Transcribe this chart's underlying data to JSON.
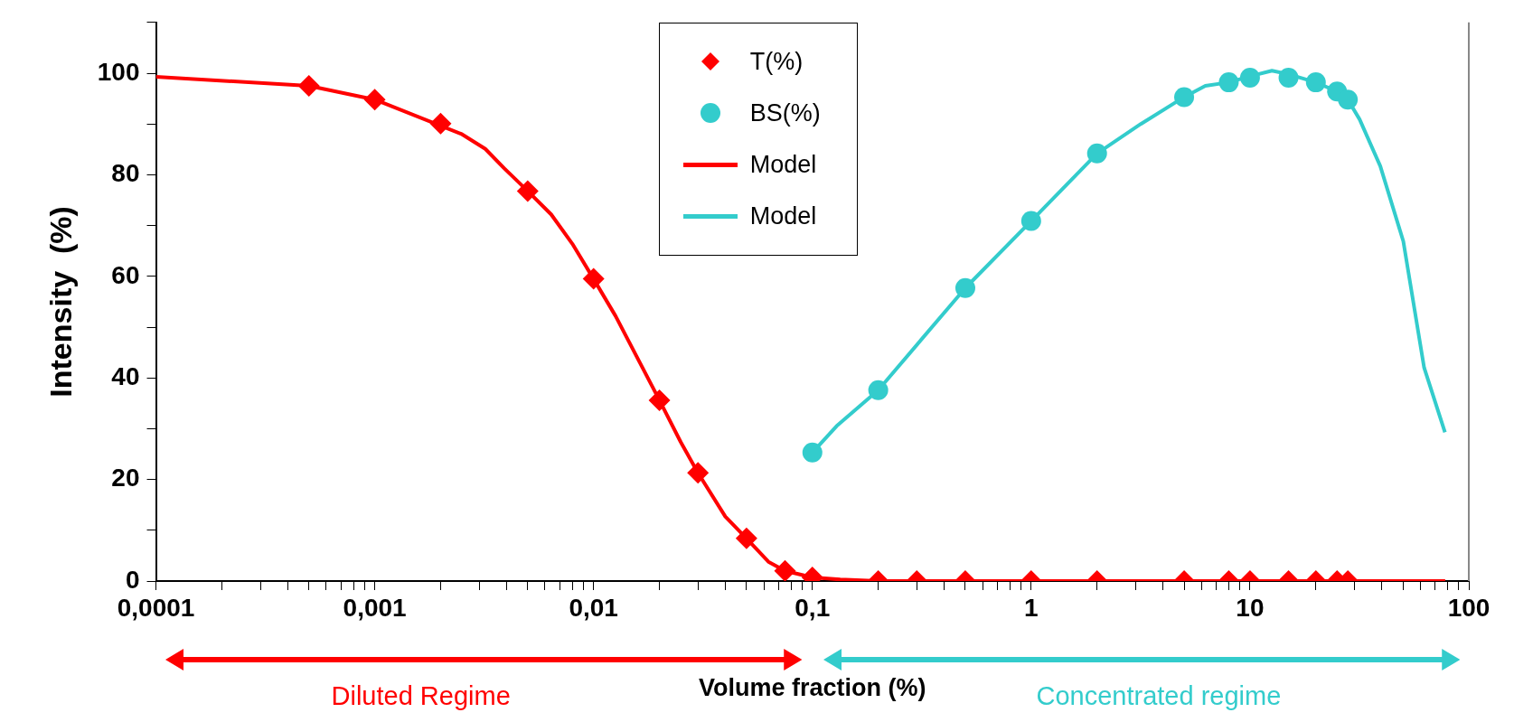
{
  "chart_data": {
    "type": "scatter",
    "xlabel": "Volume fraction (%)",
    "ylabel": "Intensity  (%)",
    "log": "x",
    "grid": false,
    "legend": "top",
    "xlim": [
      0.0001,
      100
    ],
    "ylim": [
      0,
      110
    ],
    "xticks": [
      {
        "value": 0.0001,
        "label": "0,0001"
      },
      {
        "value": 0.0002,
        "label": null
      },
      {
        "value": 0.0003,
        "label": null
      },
      {
        "value": 0.0004,
        "label": null
      },
      {
        "value": 0.0005,
        "label": null
      },
      {
        "value": 0.0006,
        "label": null
      },
      {
        "value": 0.0007,
        "label": null
      },
      {
        "value": 0.0008,
        "label": null
      },
      {
        "value": 0.0009,
        "label": null
      },
      {
        "value": 0.001,
        "label": "0,001"
      },
      {
        "value": 0.002,
        "label": null
      },
      {
        "value": 0.003,
        "label": null
      },
      {
        "value": 0.004,
        "label": null
      },
      {
        "value": 0.005,
        "label": null
      },
      {
        "value": 0.006,
        "label": null
      },
      {
        "value": 0.007,
        "label": null
      },
      {
        "value": 0.008,
        "label": null
      },
      {
        "value": 0.009,
        "label": null
      },
      {
        "value": 0.01,
        "label": "0,01"
      },
      {
        "value": 0.02,
        "label": null
      },
      {
        "value": 0.03,
        "label": null
      },
      {
        "value": 0.04,
        "label": null
      },
      {
        "value": 0.05,
        "label": null
      },
      {
        "value": 0.06,
        "label": null
      },
      {
        "value": 0.07,
        "label": null
      },
      {
        "value": 0.08,
        "label": null
      },
      {
        "value": 0.09,
        "label": null
      },
      {
        "value": 0.1,
        "label": "0,1"
      },
      {
        "value": 0.2,
        "label": null
      },
      {
        "value": 0.3,
        "label": null
      },
      {
        "value": 0.4,
        "label": null
      },
      {
        "value": 0.5,
        "label": null
      },
      {
        "value": 0.6,
        "label": null
      },
      {
        "value": 0.7,
        "label": null
      },
      {
        "value": 0.8,
        "label": null
      },
      {
        "value": 0.9,
        "label": null
      },
      1,
      {
        "value": 2,
        "label": null
      },
      {
        "value": 3,
        "label": null
      },
      {
        "value": 4,
        "label": null
      },
      {
        "value": 5,
        "label": null
      },
      {
        "value": 6,
        "label": null
      },
      {
        "value": 7,
        "label": null
      },
      {
        "value": 8,
        "label": null
      },
      {
        "value": 9,
        "label": null
      },
      10,
      {
        "value": 20,
        "label": null
      },
      {
        "value": 30,
        "label": null
      },
      {
        "value": 40,
        "label": null
      },
      {
        "value": 50,
        "label": null
      },
      {
        "value": 60,
        "label": null
      },
      {
        "value": 70,
        "label": null
      },
      {
        "value": 80,
        "label": null
      },
      {
        "value": 90,
        "label": null
      },
      100
    ],
    "yticks": [
      0,
      {
        "value": 10,
        "label": null
      },
      20,
      {
        "value": 30,
        "label": null
      },
      40,
      {
        "value": 50,
        "label": null
      },
      60,
      {
        "value": 70,
        "label": null
      },
      80,
      {
        "value": 90,
        "label": null
      },
      100,
      {
        "value": 110,
        "label": null
      }
    ],
    "series": [
      {
        "name": "T(%)",
        "marker": "diamond",
        "color": "#ff0000",
        "x": [
          0.0005,
          0.001,
          0.002,
          0.005,
          0.01,
          0.02,
          0.03,
          0.05,
          0.075,
          0.1,
          0.2,
          0.3,
          0.5,
          1,
          2,
          5,
          8,
          10,
          15,
          20,
          25,
          28
        ],
        "values": [
          97.5,
          94.8,
          90.1,
          76.8,
          59.5,
          35.6,
          21.3,
          8.4,
          2.0,
          0.7,
          0,
          0,
          0,
          0,
          0,
          0,
          0,
          0,
          0,
          0,
          0,
          0
        ]
      },
      {
        "name": "BS(%)",
        "marker": "circle",
        "color": "#33cccc",
        "x": [
          0.1,
          0.2,
          0.5,
          1,
          2,
          5,
          8,
          10,
          15,
          20,
          25,
          28
        ],
        "values": [
          25.3,
          37.6,
          57.7,
          70.9,
          84.2,
          95.3,
          98.2,
          99.1,
          99.1,
          98.2,
          96.4,
          94.8
        ]
      },
      {
        "name": "Model",
        "type": "line",
        "marker": "none",
        "line_style": "solid",
        "color": "#ff0000",
        "x": [
          0.0001,
          0.0005,
          0.001,
          0.0025,
          0.0032,
          0.0039,
          0.005,
          0.0064,
          0.008,
          0.01,
          0.0126,
          0.02,
          0.025,
          0.03,
          0.04,
          0.05,
          0.063,
          0.075,
          0.1,
          0.134,
          0.2,
          78
        ],
        "values": [
          99.3,
          97.5,
          94.8,
          88,
          85.1,
          81.3,
          76.8,
          72.2,
          66.4,
          59.5,
          52.2,
          35.6,
          27.4,
          21.3,
          12.7,
          8.4,
          3.8,
          2.0,
          0.7,
          0.3,
          0,
          0
        ]
      },
      {
        "name": "Model",
        "type": "line",
        "marker": "none",
        "line_style": "solid",
        "color": "#33cccc",
        "x": [
          0.1,
          0.129,
          0.2,
          0.5,
          1,
          2,
          3.17,
          5,
          6.25,
          8,
          10,
          12.6,
          15,
          20,
          25,
          28,
          31.7,
          39.4,
          50.2,
          62.5,
          77.8
        ],
        "values": [
          25.3,
          30.5,
          37.6,
          57.7,
          70.9,
          84.2,
          90,
          95.3,
          97.5,
          98.2,
          99.4,
          100.5,
          99.8,
          98.2,
          96.4,
          94.8,
          90.9,
          81.7,
          66.9,
          42.0,
          29.3
        ]
      }
    ],
    "annotations": [
      "Diluted Regime",
      "Concentrated regime"
    ]
  }
}
